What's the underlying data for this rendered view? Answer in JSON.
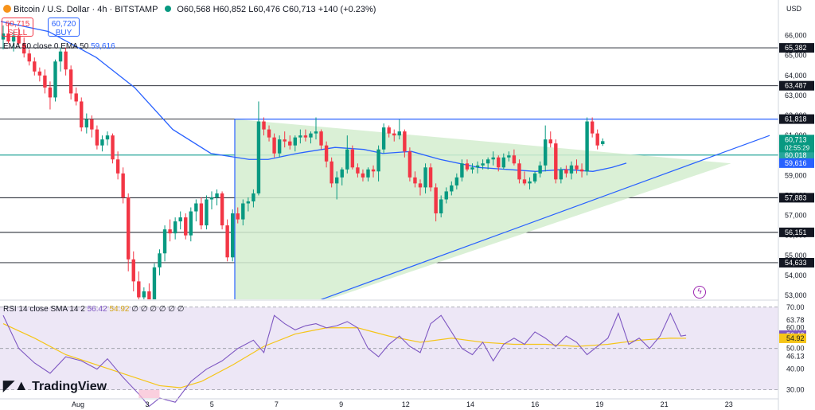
{
  "header": {
    "title": "Bitcoin / U.S. Dollar · 4h · BITSTAMP",
    "ohlc": "O60,568 H60,852 L60,476 C60,713 +140 (+0.23%)",
    "sell_price": "60,715",
    "sell_label": "SELL",
    "buy_price": "60,720",
    "buy_label": "BUY",
    "ema_legend_label": "EMA 50 close 0 EMA 50",
    "ema_legend_value": "59,616",
    "rsi_legend_label": "RSI 14 close SMA 14 2",
    "rsi_legend_value1": "56.42",
    "rsi_legend_value2": "54.92",
    "rsi_legend_zeros": "∅ ∅ ∅ ∅ ∅ ∅",
    "currency": "USD"
  },
  "logo": "TradingView",
  "colors": {
    "up": "#089981",
    "down": "#f23645",
    "ema": "#2962ff",
    "triangle_fill": "#d4edcf",
    "rsi": "#7e57c2",
    "rsi_ma": "#f5c518",
    "rsi_band": "#ede7f6",
    "axis_label_bg": "#131722",
    "price_line": "#26a69a"
  },
  "chart_data": {
    "type": "candlestick",
    "symbol": "BTCUSD",
    "interval": "4h",
    "ylim": [
      52800,
      66900
    ],
    "y_ticks": [
      53000,
      54000,
      55000,
      56000,
      57000,
      58000,
      59000,
      60000,
      61000,
      62000,
      63000,
      64000,
      65000,
      66000
    ],
    "x_tick_labels": [
      {
        "t": 0,
        "label": "Aug"
      },
      {
        "t": 15,
        "label": "3"
      },
      {
        "t": 29,
        "label": "5"
      },
      {
        "t": 43,
        "label": "7"
      },
      {
        "t": 57,
        "label": "9"
      },
      {
        "t": 71,
        "label": "12"
      },
      {
        "t": 85,
        "label": "14"
      },
      {
        "t": 99,
        "label": "16"
      },
      {
        "t": 113,
        "label": "19"
      },
      {
        "t": 127,
        "label": "21"
      },
      {
        "t": 141,
        "label": "23"
      }
    ],
    "candles": [
      [
        65800,
        66500,
        65300,
        66100
      ],
      [
        66100,
        66600,
        65600,
        65700
      ],
      [
        65700,
        66200,
        65200,
        66000
      ],
      [
        66000,
        66400,
        65500,
        65600
      ],
      [
        65600,
        65900,
        64900,
        65100
      ],
      [
        65100,
        65300,
        64500,
        64700
      ],
      [
        64700,
        64900,
        64000,
        64200
      ],
      [
        64200,
        64400,
        63700,
        64000
      ],
      [
        64000,
        64300,
        63100,
        63400
      ],
      [
        63400,
        63700,
        62300,
        62900
      ],
      [
        62900,
        64800,
        62700,
        64700
      ],
      [
        64700,
        65400,
        64200,
        65200
      ],
      [
        65200,
        65400,
        64000,
        64300
      ],
      [
        64300,
        64500,
        62800,
        63100
      ],
      [
        63100,
        63400,
        62500,
        62700
      ],
      [
        62700,
        62900,
        61200,
        61400
      ],
      [
        61400,
        62100,
        61100,
        61800
      ],
      [
        61800,
        62000,
        60900,
        61300
      ],
      [
        61300,
        61500,
        60300,
        60500
      ],
      [
        60500,
        61000,
        60200,
        60800
      ],
      [
        60800,
        61200,
        60500,
        61000
      ],
      [
        61000,
        61100,
        59600,
        59800
      ],
      [
        59800,
        60200,
        58800,
        59100
      ],
      [
        59100,
        59400,
        57600,
        57900
      ],
      [
        57900,
        58100,
        54200,
        54800
      ],
      [
        54800,
        55200,
        53200,
        53700
      ],
      [
        53700,
        54200,
        52700,
        52900
      ],
      [
        52900,
        53400,
        52300,
        53200
      ],
      [
        53200,
        53600,
        52300,
        52600
      ],
      [
        52600,
        54600,
        52300,
        54400
      ],
      [
        54400,
        55300,
        54000,
        55100
      ],
      [
        55100,
        56500,
        54700,
        56300
      ],
      [
        56300,
        56800,
        55700,
        56100
      ],
      [
        56100,
        56900,
        55800,
        56700
      ],
      [
        56700,
        57200,
        56300,
        56900
      ],
      [
        56900,
        57100,
        55800,
        56000
      ],
      [
        56000,
        57400,
        55700,
        57200
      ],
      [
        57200,
        57800,
        56700,
        57600
      ],
      [
        57600,
        57900,
        56300,
        56500
      ],
      [
        56500,
        58000,
        56300,
        57800
      ],
      [
        57800,
        58200,
        57300,
        57900
      ],
      [
        57900,
        58300,
        57500,
        58100
      ],
      [
        58100,
        58200,
        56300,
        56500
      ],
      [
        56500,
        56800,
        54700,
        54900
      ],
      [
        54900,
        57300,
        54700,
        57100
      ],
      [
        57100,
        57400,
        56600,
        56800
      ],
      [
        56800,
        57800,
        56500,
        57600
      ],
      [
        57600,
        57900,
        57200,
        57700
      ],
      [
        57700,
        58300,
        57400,
        58100
      ],
      [
        58100,
        62700,
        58000,
        61700
      ],
      [
        61700,
        61900,
        61000,
        61300
      ],
      [
        61300,
        61500,
        60700,
        60900
      ],
      [
        60900,
        61100,
        59900,
        60100
      ],
      [
        60100,
        61000,
        59900,
        60800
      ],
      [
        60800,
        61200,
        60400,
        60700
      ],
      [
        60700,
        61000,
        60300,
        60500
      ],
      [
        60500,
        61000,
        60200,
        60900
      ],
      [
        60900,
        61300,
        60600,
        61000
      ],
      [
        61000,
        61300,
        60700,
        60900
      ],
      [
        60900,
        61200,
        60600,
        61100
      ],
      [
        61100,
        61900,
        60800,
        61200
      ],
      [
        61200,
        61300,
        60300,
        60500
      ],
      [
        60500,
        60700,
        59400,
        59700
      ],
      [
        59700,
        59900,
        58400,
        58600
      ],
      [
        58600,
        59200,
        57800,
        58900
      ],
      [
        58900,
        59400,
        58500,
        59300
      ],
      [
        59300,
        61000,
        59100,
        60300
      ],
      [
        60300,
        60500,
        59300,
        59400
      ],
      [
        59400,
        59600,
        58900,
        59100
      ],
      [
        59100,
        59300,
        58700,
        58900
      ],
      [
        58900,
        59400,
        58700,
        59300
      ],
      [
        59300,
        59500,
        58900,
        59200
      ],
      [
        59200,
        60500,
        58700,
        60300
      ],
      [
        60300,
        61600,
        60100,
        61400
      ],
      [
        61400,
        61500,
        60900,
        61100
      ],
      [
        61100,
        61300,
        60700,
        61000
      ],
      [
        61000,
        61800,
        60800,
        61200
      ],
      [
        61200,
        61300,
        59900,
        60200
      ],
      [
        60200,
        60400,
        58700,
        58900
      ],
      [
        58900,
        59200,
        58400,
        58600
      ],
      [
        58600,
        58800,
        58000,
        58400
      ],
      [
        58400,
        59600,
        58100,
        59400
      ],
      [
        59400,
        59600,
        58200,
        58400
      ],
      [
        58400,
        58600,
        56700,
        57100
      ],
      [
        57100,
        58000,
        56900,
        57800
      ],
      [
        57800,
        58400,
        57600,
        58200
      ],
      [
        58200,
        58700,
        58000,
        58500
      ],
      [
        58500,
        59100,
        58300,
        58900
      ],
      [
        58900,
        59800,
        58700,
        59600
      ],
      [
        59600,
        59800,
        59200,
        59300
      ],
      [
        59300,
        59600,
        59100,
        59400
      ],
      [
        59400,
        59700,
        59100,
        59500
      ],
      [
        59500,
        59800,
        59300,
        59600
      ],
      [
        59600,
        59900,
        59300,
        59800
      ],
      [
        59800,
        60200,
        59500,
        59900
      ],
      [
        59900,
        60000,
        59200,
        59400
      ],
      [
        59400,
        60100,
        59300,
        59900
      ],
      [
        59900,
        60200,
        59700,
        60000
      ],
      [
        60000,
        60300,
        59500,
        59600
      ],
      [
        59600,
        59800,
        58600,
        58800
      ],
      [
        58800,
        59200,
        58500,
        58600
      ],
      [
        58600,
        58900,
        58300,
        58700
      ],
      [
        58700,
        59200,
        58600,
        59100
      ],
      [
        59100,
        59700,
        58900,
        59500
      ],
      [
        59500,
        61500,
        59200,
        60800
      ],
      [
        60800,
        61200,
        60400,
        60600
      ],
      [
        60600,
        60800,
        58600,
        58800
      ],
      [
        58800,
        59400,
        58600,
        59300
      ],
      [
        59300,
        59500,
        58900,
        59100
      ],
      [
        59100,
        59700,
        58800,
        59500
      ],
      [
        59500,
        59800,
        59100,
        59300
      ],
      [
        59300,
        59600,
        58900,
        59200
      ],
      [
        59200,
        61900,
        59000,
        61700
      ],
      [
        61700,
        61900,
        60900,
        61100
      ],
      [
        61100,
        61300,
        60300,
        60500
      ],
      [
        60568,
        60852,
        60476,
        60713
      ]
    ],
    "ema50": [
      [
        0,
        66700
      ],
      [
        10,
        66200
      ],
      [
        20,
        64900
      ],
      [
        28,
        63400
      ],
      [
        36,
        61300
      ],
      [
        44,
        60100
      ],
      [
        52,
        59800
      ],
      [
        56,
        59800
      ],
      [
        62,
        60100
      ],
      [
        70,
        60400
      ],
      [
        76,
        60300
      ],
      [
        80,
        60100
      ],
      [
        86,
        60200
      ],
      [
        92,
        59800
      ],
      [
        100,
        59400
      ],
      [
        106,
        59300
      ],
      [
        112,
        59200
      ],
      [
        118,
        59300
      ],
      [
        124,
        59200
      ],
      [
        128,
        59400
      ],
      [
        131,
        59616
      ]
    ],
    "horizontal_levels": [
      65382,
      63487,
      61818,
      60018,
      57883,
      56151,
      54633
    ],
    "level_labels": [
      "65,382",
      "63,487",
      "61,818",
      "60,018",
      "57,883",
      "56,151",
      "54,633"
    ],
    "price_scale_labels": {
      "current_price": "60,713",
      "countdown": "02:55:29",
      "ema_value": "59,616"
    },
    "triangle": {
      "resistance": 61818,
      "start_t": 33,
      "start_low": 52800,
      "apex_t": 137,
      "apex_price": 59600,
      "trend_end": [
        145,
        61000
      ]
    },
    "rsi": {
      "ylim": [
        26,
        73
      ],
      "ticks": [
        30.0,
        40.0,
        46.13,
        50.0,
        60.0,
        63.78,
        70.0
      ],
      "tick_labels": [
        "30.00",
        "40.00",
        "46.13",
        "50.00",
        "60.00",
        "63.78",
        "70.00"
      ],
      "value": 56.42,
      "ma_value": 54.92,
      "rsi_series": [
        [
          0,
          66
        ],
        [
          3,
          50
        ],
        [
          6,
          43
        ],
        [
          9,
          38
        ],
        [
          12,
          46
        ],
        [
          15,
          44
        ],
        [
          18,
          40
        ],
        [
          20,
          45
        ],
        [
          23,
          36
        ],
        [
          26,
          28
        ],
        [
          28,
          22
        ],
        [
          30,
          26
        ],
        [
          33,
          24
        ],
        [
          36,
          34
        ],
        [
          39,
          40
        ],
        [
          42,
          44
        ],
        [
          45,
          50
        ],
        [
          48,
          54
        ],
        [
          50,
          48
        ],
        [
          52,
          66
        ],
        [
          54,
          62
        ],
        [
          56,
          59
        ],
        [
          58,
          61
        ],
        [
          60,
          62
        ],
        [
          62,
          60
        ],
        [
          64,
          61
        ],
        [
          66,
          63
        ],
        [
          68,
          60
        ],
        [
          70,
          50
        ],
        [
          72,
          46
        ],
        [
          74,
          52
        ],
        [
          76,
          56
        ],
        [
          78,
          51
        ],
        [
          80,
          48
        ],
        [
          82,
          62
        ],
        [
          84,
          66
        ],
        [
          86,
          58
        ],
        [
          88,
          50
        ],
        [
          90,
          47
        ],
        [
          92,
          53
        ],
        [
          94,
          44
        ],
        [
          96,
          52
        ],
        [
          98,
          55
        ],
        [
          100,
          52
        ],
        [
          102,
          58
        ],
        [
          104,
          55
        ],
        [
          106,
          51
        ],
        [
          108,
          56
        ],
        [
          110,
          53
        ],
        [
          112,
          47
        ],
        [
          114,
          51
        ],
        [
          116,
          55
        ],
        [
          118,
          67
        ],
        [
          120,
          52
        ],
        [
          122,
          55
        ],
        [
          124,
          50
        ],
        [
          126,
          56
        ],
        [
          128,
          67
        ],
        [
          130,
          56
        ],
        [
          131,
          56.42
        ]
      ],
      "ma_series": [
        [
          0,
          62
        ],
        [
          6,
          55
        ],
        [
          12,
          47
        ],
        [
          18,
          42
        ],
        [
          24,
          37
        ],
        [
          30,
          32
        ],
        [
          34,
          31
        ],
        [
          38,
          34
        ],
        [
          44,
          42
        ],
        [
          50,
          51
        ],
        [
          56,
          57
        ],
        [
          62,
          60
        ],
        [
          68,
          60
        ],
        [
          74,
          56
        ],
        [
          80,
          53
        ],
        [
          86,
          55
        ],
        [
          92,
          53
        ],
        [
          98,
          52
        ],
        [
          104,
          52
        ],
        [
          110,
          51
        ],
        [
          116,
          52
        ],
        [
          122,
          54
        ],
        [
          128,
          55
        ],
        [
          131,
          54.92
        ]
      ]
    }
  }
}
